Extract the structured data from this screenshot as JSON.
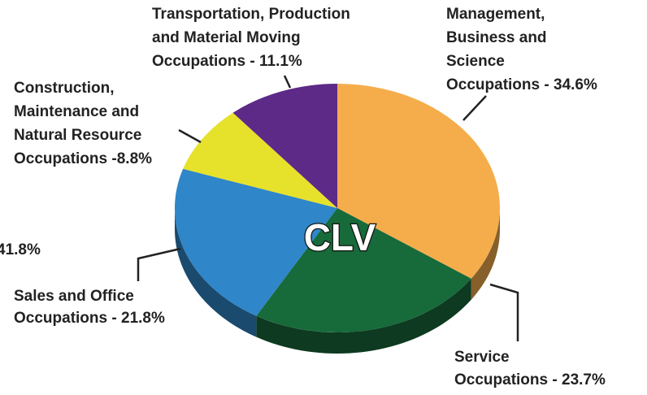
{
  "chart_data": {
    "type": "pie",
    "categories": [
      "Management,\nBusiness and\nScience\nOccupations",
      "Service\nOccupations",
      "Sales and Office\nOccupations",
      "Construction,\nMaintenance and\nNatural Resource\nOccupations",
      "Transportation, Production\nand Material Moving\nOccupations"
    ],
    "values": [
      34.6,
      23.7,
      21.8,
      8.8,
      11.1
    ],
    "value_labels": [
      "- 34.6%",
      "- 23.7%",
      "- 21.8%",
      "-8.8%",
      "- 11.1%"
    ],
    "colors": [
      "#f5ad4c",
      "#176a3a",
      "#2f86c8",
      "#e6e12b",
      "#5d2a87"
    ],
    "center_label": "CLV",
    "annotation": "41.8%"
  }
}
